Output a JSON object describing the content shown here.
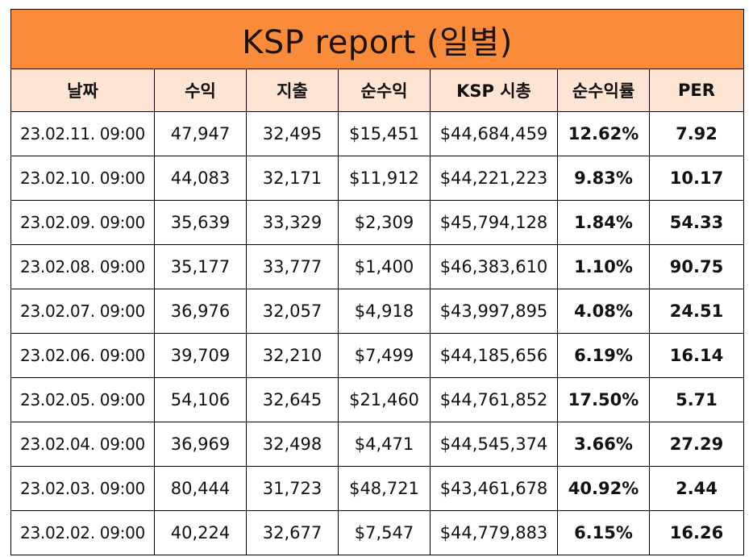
{
  "report": {
    "title": "KSP report (일별)",
    "columns": [
      "날짜",
      "수익",
      "지출",
      "순수익",
      "KSP 시총",
      "순수익률",
      "PER"
    ],
    "rows": [
      [
        "23.02.11. 09:00",
        "47,947",
        "32,495",
        "$15,451",
        "$44,684,459",
        "12.62%",
        "7.92"
      ],
      [
        "23.02.10. 09:00",
        "44,083",
        "32,171",
        "$11,912",
        "$44,221,223",
        "9.83%",
        "10.17"
      ],
      [
        "23.02.09. 09:00",
        "35,639",
        "33,329",
        "$2,309",
        "$45,794,128",
        "1.84%",
        "54.33"
      ],
      [
        "23.02.08. 09:00",
        "35,177",
        "33,777",
        "$1,400",
        "$46,383,610",
        "1.10%",
        "90.75"
      ],
      [
        "23.02.07. 09:00",
        "36,976",
        "32,057",
        "$4,918",
        "$43,997,895",
        "4.08%",
        "24.51"
      ],
      [
        "23.02.06. 09:00",
        "39,709",
        "32,210",
        "$7,499",
        "$44,185,656",
        "6.19%",
        "16.14"
      ],
      [
        "23.02.05. 09:00",
        "54,106",
        "32,645",
        "$21,460",
        "$44,761,852",
        "17.50%",
        "5.71"
      ],
      [
        "23.02.04. 09:00",
        "36,969",
        "32,498",
        "$4,471",
        "$44,545,374",
        "3.66%",
        "27.29"
      ],
      [
        "23.02.03. 09:00",
        "80,444",
        "31,723",
        "$48,721",
        "$43,461,678",
        "40.92%",
        "2.44"
      ],
      [
        "23.02.02. 09:00",
        "40,224",
        "32,677",
        "$7,547",
        "$44,779,883",
        "6.15%",
        "16.26"
      ]
    ]
  },
  "colors": {
    "title_background": "#f98b3a",
    "header_background": "#fde4d3",
    "border": "#000000"
  }
}
